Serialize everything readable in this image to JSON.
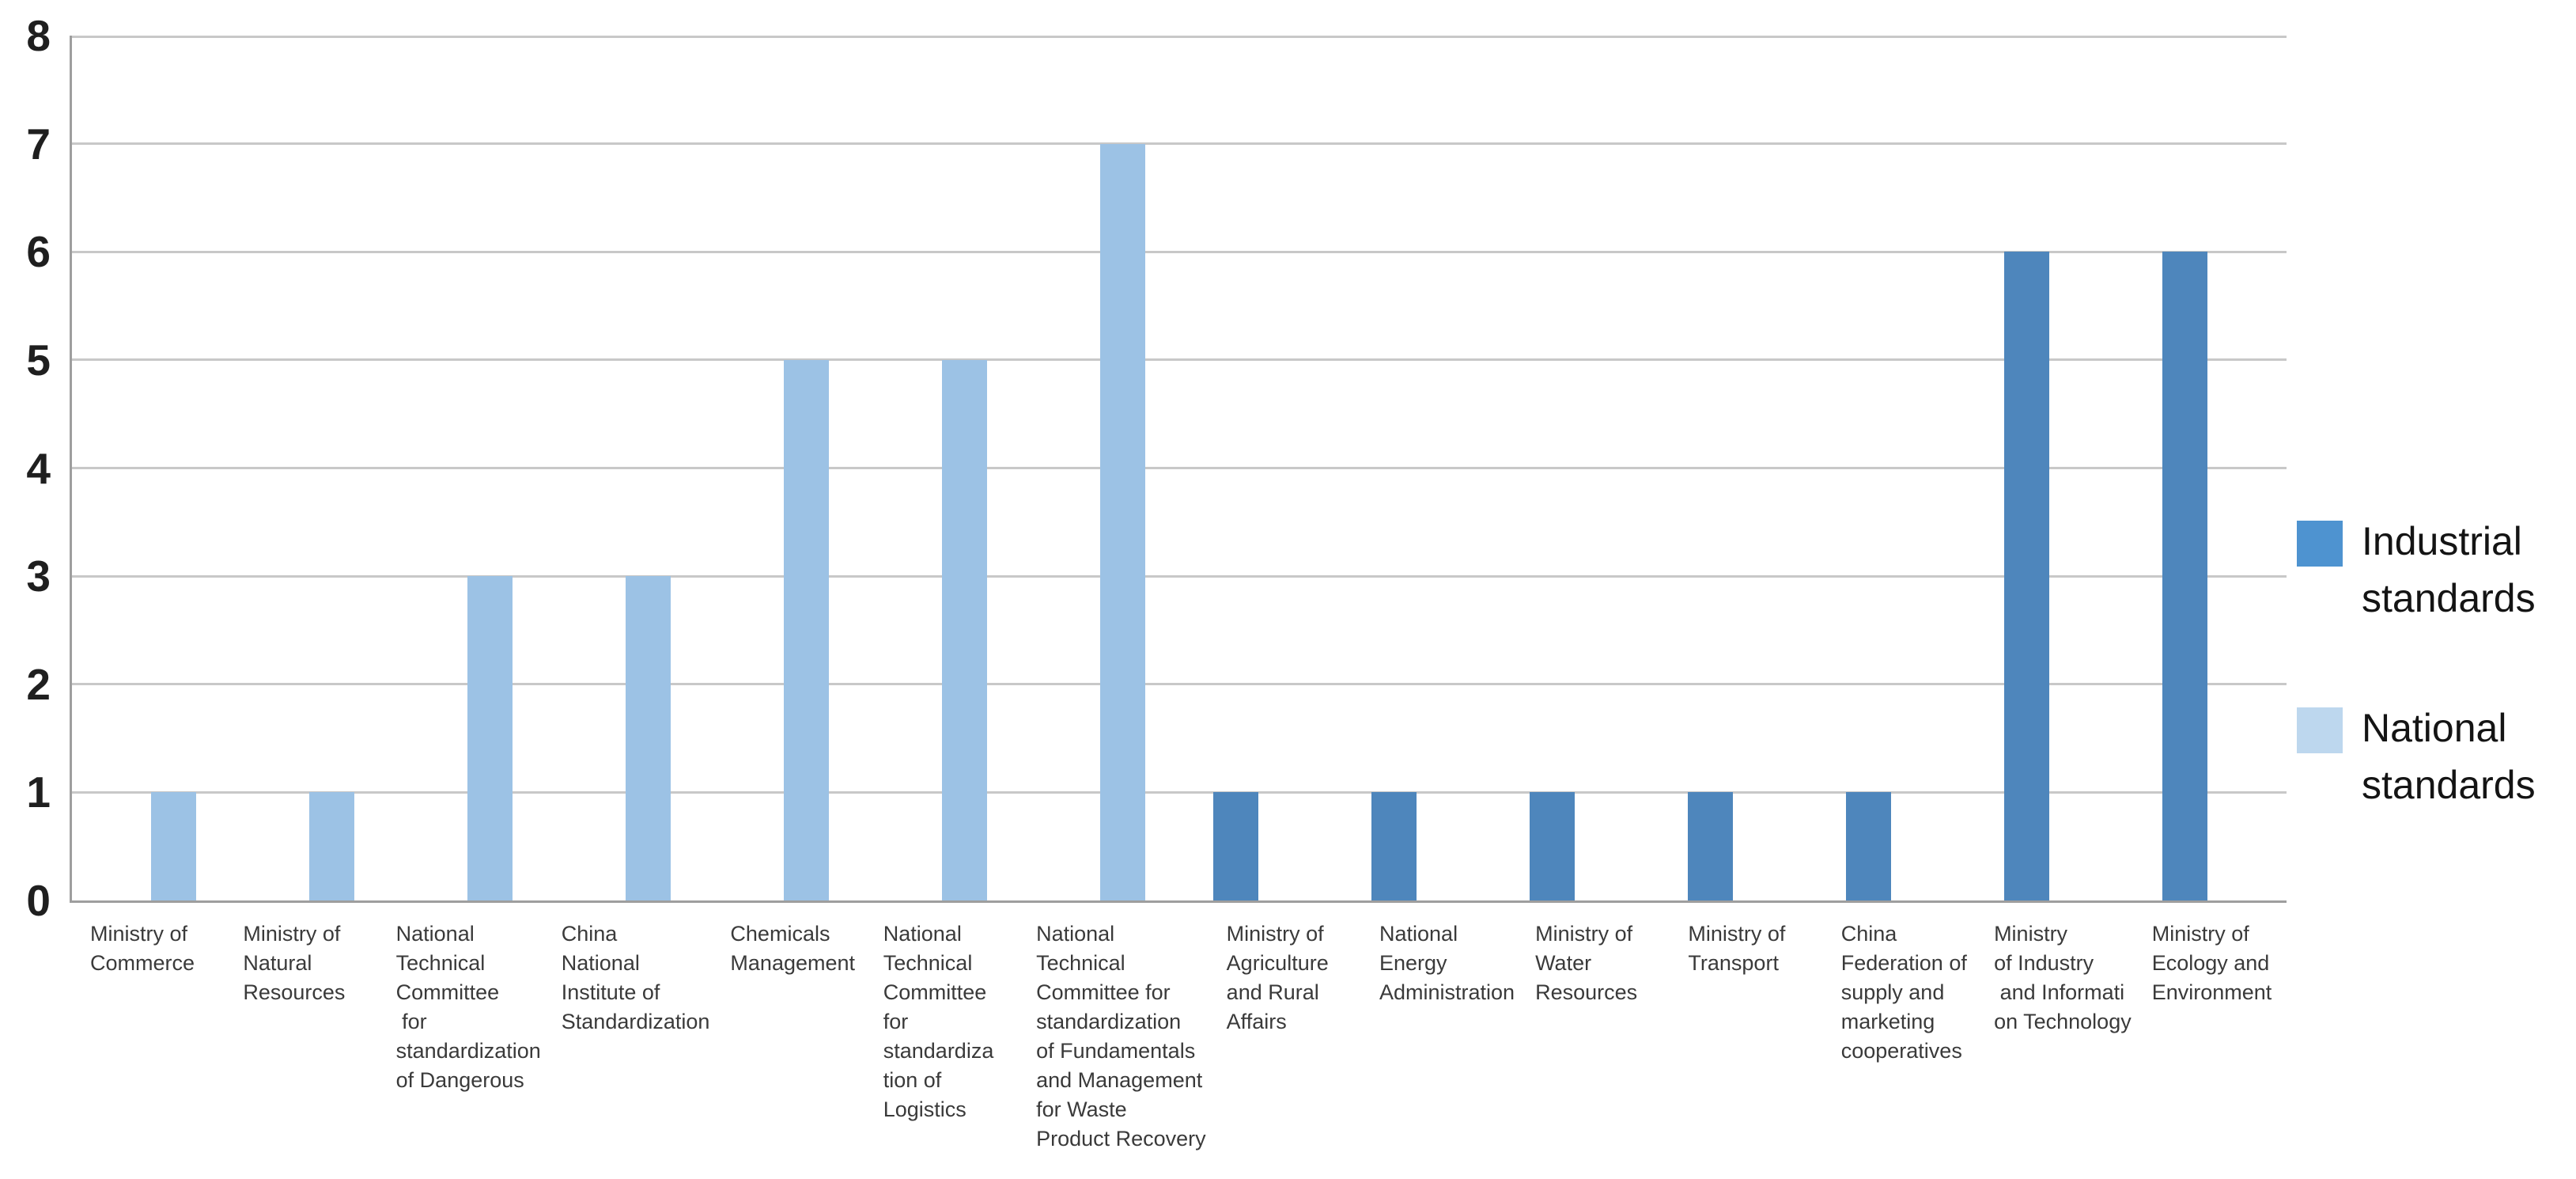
{
  "chart_data": {
    "type": "bar",
    "title": "",
    "xlabel": "",
    "ylabel": "",
    "ylim": [
      0,
      8
    ],
    "yticks": [
      0,
      1,
      2,
      3,
      4,
      5,
      6,
      7,
      8
    ],
    "grid": true,
    "legend_position": "right-middle",
    "categories": [
      "Ministry of\nCommerce",
      "Ministry of\nNatural\nResources",
      "National\nTechnical\nCommittee\n for\nstandardization\nof Dangerous",
      "China\nNational\nInstitute of\nStandardization",
      "Chemicals\nManagement",
      "National\nTechnical\nCommittee\nfor\nstandardiza\ntion of\nLogistics",
      "National\nTechnical\nCommittee for\nstandardization\nof Fundamentals\nand Management\nfor Waste\nProduct Recovery",
      "Ministry of\nAgriculture\nand Rural\nAffairs",
      "National\nEnergy\nAdministration",
      "Ministry of\nWater\nResources",
      "Ministry of\nTransport",
      "China\nFederation of\nsupply and\nmarketing\ncooperatives",
      "Ministry\nof Industry\n and Informati\non Technology",
      "Ministry of\nEcology and\nEnvironment"
    ],
    "series": [
      {
        "name": "Industrial standards",
        "values": [
          0,
          0,
          0,
          0,
          0,
          0,
          0,
          1,
          1,
          1,
          1,
          1,
          6,
          6
        ],
        "bar_color": "#4E86BC",
        "legend_swatch_color": "#4E93D0"
      },
      {
        "name": "National standards",
        "values": [
          1,
          1,
          3,
          3,
          5,
          5,
          7,
          0,
          0,
          0,
          0,
          0,
          0,
          0
        ],
        "bar_color": "#9CC2E5",
        "legend_swatch_color": "#BDD7EE"
      }
    ]
  },
  "styles": {
    "background": "#FFFFFF",
    "gridline_color": "#C8C8C8",
    "axis_color": "#9E9E9E",
    "ytick_label_color": "#1F1F1F",
    "category_label_color": "#3A3A3A",
    "legend_text_color": "#141414"
  }
}
